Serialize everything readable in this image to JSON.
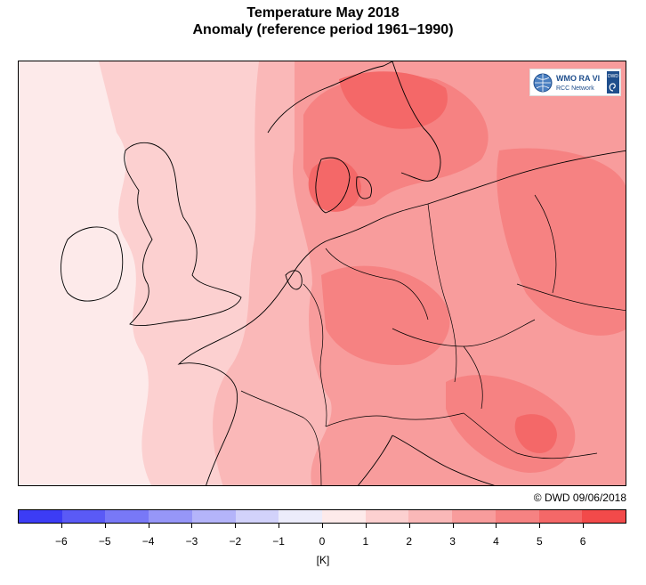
{
  "header": {
    "title_line1": "Temperature May 2018",
    "title_line2": "Anomaly (reference period 1961−1990)"
  },
  "logo": {
    "org": "WMO RA VI",
    "network": "RCC Network",
    "badge": "DWD"
  },
  "credit": "© DWD 09/06/2018",
  "colorbar": {
    "colors": [
      "#3c3cf5",
      "#5a5af6",
      "#7878f7",
      "#9696f8",
      "#b4b4fa",
      "#d2d2fb",
      "#ececfb",
      "#fdeaea",
      "#fcd0d0",
      "#fab8b8",
      "#f89c9c",
      "#f68282",
      "#f46868",
      "#f24a4a"
    ],
    "tick_labels": [
      "−6",
      "−5",
      "−4",
      "−3",
      "−2",
      "−1",
      "0",
      "1",
      "2",
      "3",
      "4",
      "5",
      "6"
    ],
    "unit": "[K]"
  },
  "map_colors": {
    "sea_light": "#fdeaea",
    "band_1_2": "#fcd0d0",
    "band_2_3": "#fab8b8",
    "band_3_4": "#f89c9c",
    "band_4_5": "#f68282",
    "band_5_6": "#f46868",
    "coast": "#000000"
  }
}
